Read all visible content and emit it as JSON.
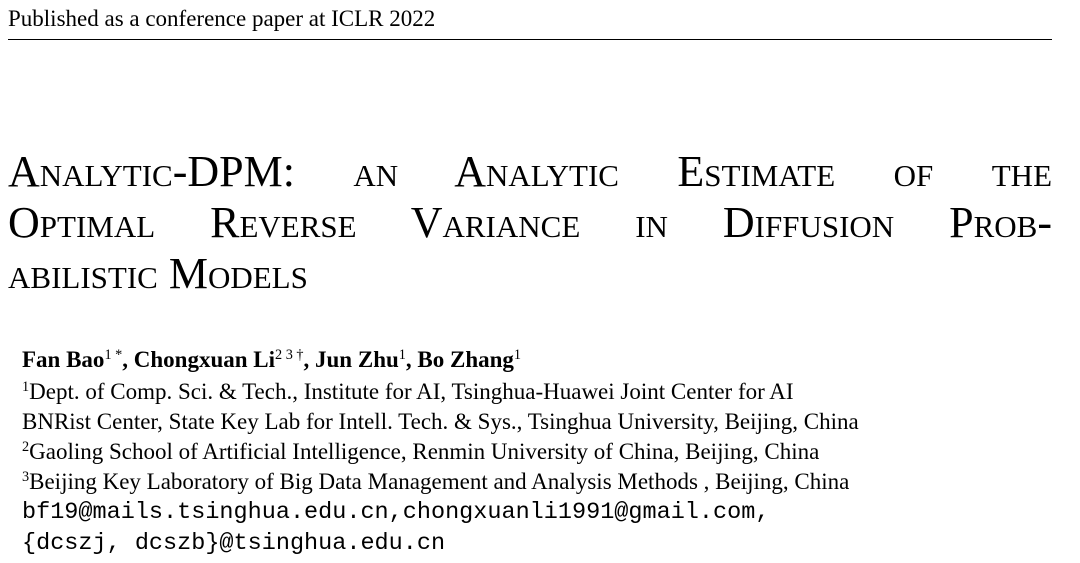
{
  "header": {
    "text": "Published as a conference paper at ICLR 2022"
  },
  "title": {
    "lines": [
      "Analytic-DPM: an Analytic Estimate of the",
      "Optimal Reverse Variance in Diffusion Prob-",
      "abilistic Models"
    ]
  },
  "authors": [
    {
      "name": "Fan Bao",
      "sup": "1 *",
      "sep": ","
    },
    {
      "name": "Chongxuan Li",
      "sup": "2 3 †",
      "sep": ","
    },
    {
      "name": "Jun Zhu",
      "sup": "1",
      "sep": ","
    },
    {
      "name": "Bo Zhang",
      "sup": "1"
    }
  ],
  "affiliations": [
    {
      "sup": "1",
      "text": "Dept. of Comp. Sci. & Tech., Institute for AI, Tsinghua-Huawei Joint Center for AI"
    },
    {
      "text": "BNRist Center, State Key Lab for Intell. Tech. & Sys., Tsinghua University, Beijing, China"
    },
    {
      "sup": "2",
      "text": "Gaoling School of Artificial Intelligence, Renmin University of China, Beijing, China"
    },
    {
      "sup": "3",
      "text": "Beijing Key Laboratory of Big Data Management and Analysis Methods , Beijing, China"
    }
  ],
  "emails": [
    "bf19@mails.tsinghua.edu.cn,chongxuanli1991@gmail.com,",
    "{dcszj, dcszb}@tsinghua.edu.cn"
  ]
}
